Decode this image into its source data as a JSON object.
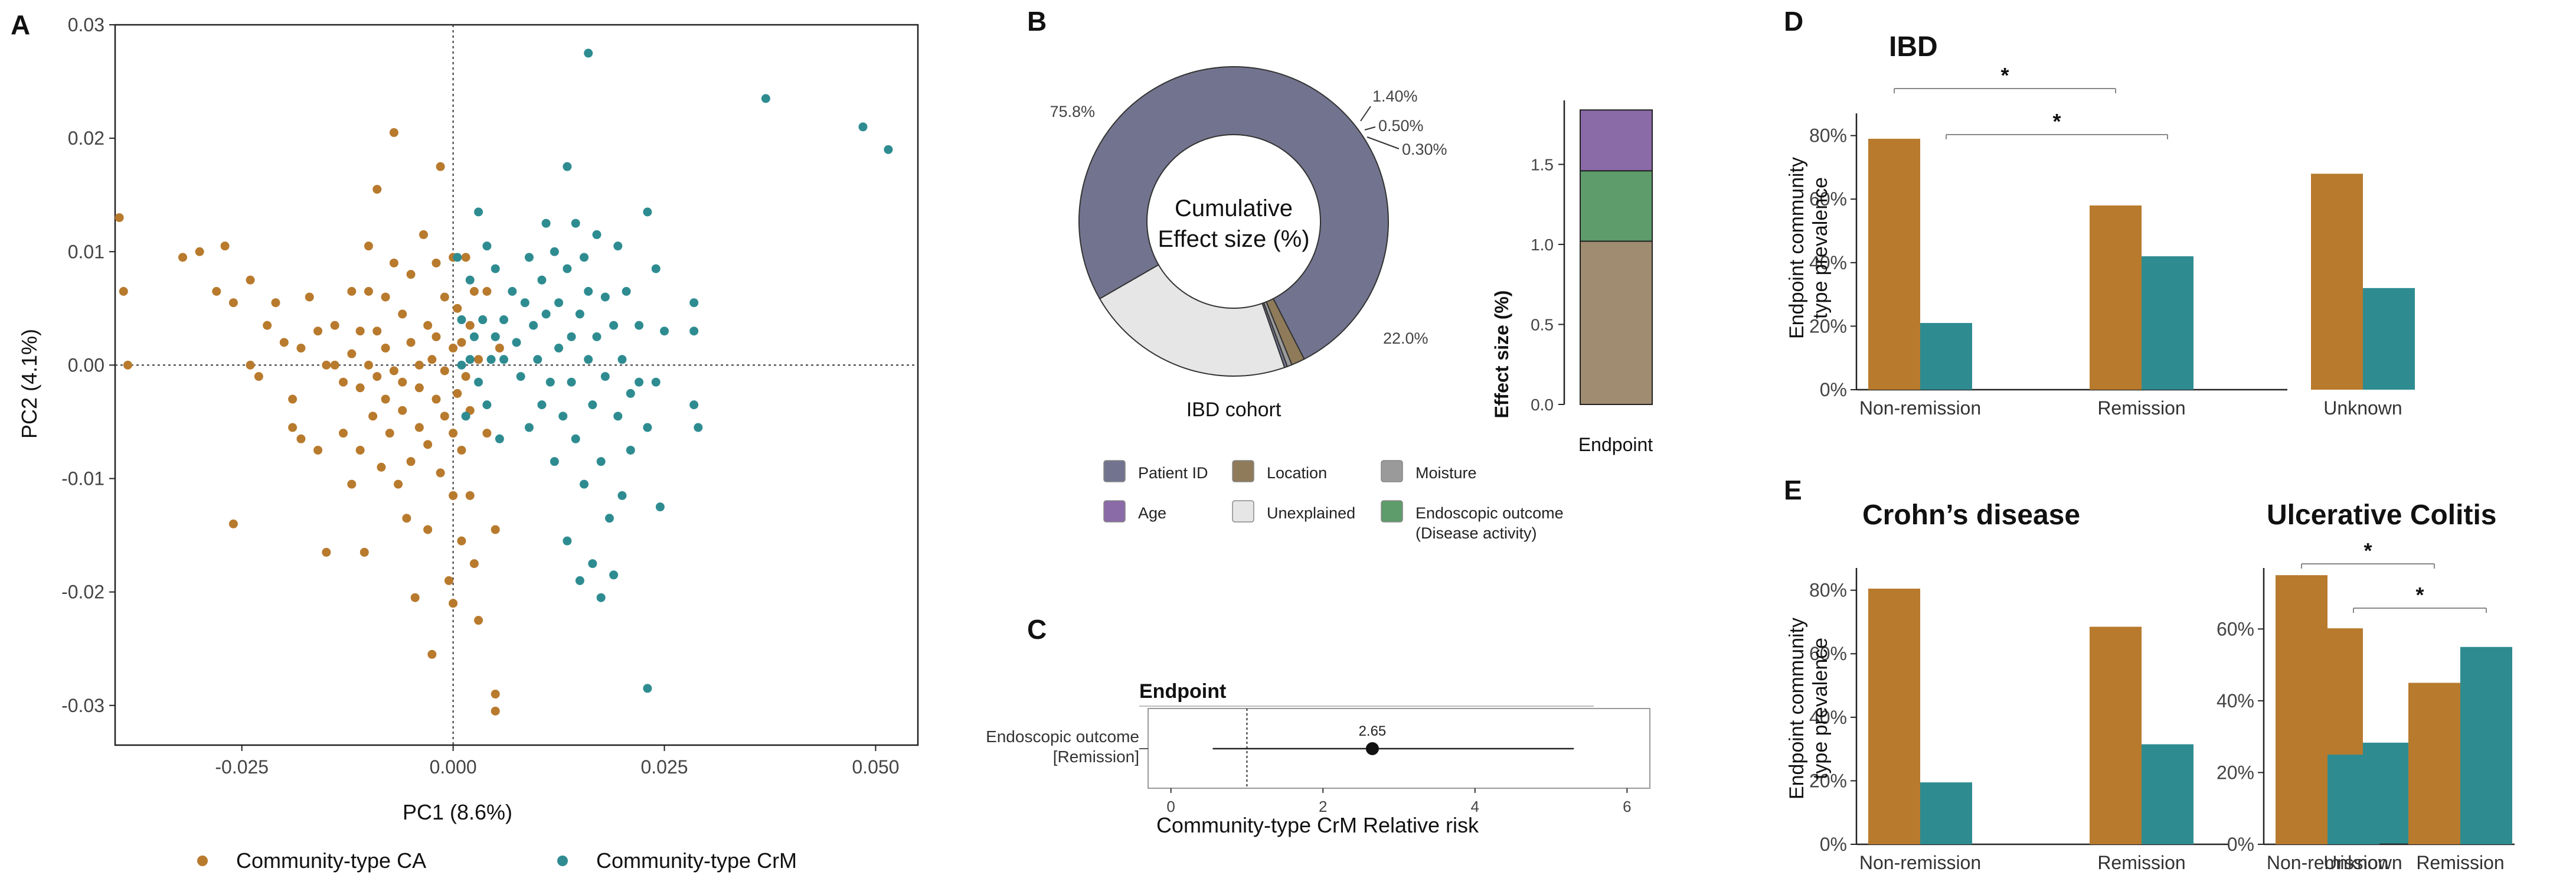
{
  "colors": {
    "ca": "#b87a2d",
    "crm": "#2e8c91",
    "patient_id": "#72748f",
    "location": "#8f7b5a",
    "moisture": "#9a9a9a",
    "age": "#8b6aa8",
    "unexplained": "#e6e6e6",
    "endo": "#5e9c6b",
    "effect_stack_base": "#a08c70"
  },
  "panel_letters": [
    "A",
    "B",
    "C",
    "D",
    "E"
  ],
  "panelA": {
    "chart_data": {
      "type": "scatter",
      "xlabel": "PC1 (8.6%)",
      "ylabel": "PC2 (4.1%)",
      "xlim": [
        -0.04,
        0.055
      ],
      "ylim": [
        -0.0335,
        0.03
      ],
      "x_ticks": [
        -0.025,
        0.0,
        0.025,
        0.05
      ],
      "x_tick_labels": [
        "-0.025",
        "0.000",
        "0.025",
        "0.050"
      ],
      "y_ticks": [
        -0.03,
        -0.02,
        -0.01,
        0.0,
        0.01,
        0.02,
        0.03
      ],
      "y_tick_labels": [
        "-0.03",
        "-0.02",
        "-0.01",
        "0.00",
        "0.01",
        "0.02",
        "0.03"
      ],
      "legend": [
        "Community-type CA",
        "Community-type CrM"
      ],
      "series": [
        {
          "name": "Community-type CA",
          "points": [
            [
              -0.0395,
              0.013
            ],
            [
              -0.039,
              0.0065
            ],
            [
              -0.0385,
              0.0
            ],
            [
              -0.032,
              0.0095
            ],
            [
              -0.03,
              0.01
            ],
            [
              -0.028,
              0.0065
            ],
            [
              -0.027,
              0.0105
            ],
            [
              -0.026,
              0.0055
            ],
            [
              -0.026,
              -0.014
            ],
            [
              -0.024,
              0.0075
            ],
            [
              -0.024,
              0.0
            ],
            [
              -0.023,
              -0.001
            ],
            [
              -0.022,
              0.0035
            ],
            [
              -0.021,
              0.0055
            ],
            [
              -0.02,
              0.002
            ],
            [
              -0.019,
              -0.003
            ],
            [
              -0.019,
              -0.0055
            ],
            [
              -0.018,
              0.0015
            ],
            [
              -0.018,
              -0.0065
            ],
            [
              -0.017,
              0.006
            ],
            [
              -0.016,
              0.003
            ],
            [
              -0.016,
              -0.0075
            ],
            [
              -0.015,
              0.0
            ],
            [
              -0.015,
              -0.0165
            ],
            [
              -0.014,
              0.0035
            ],
            [
              -0.014,
              0.0
            ],
            [
              -0.013,
              -0.0015
            ],
            [
              -0.013,
              -0.006
            ],
            [
              -0.012,
              0.0065
            ],
            [
              -0.012,
              0.001
            ],
            [
              -0.012,
              -0.0105
            ],
            [
              -0.011,
              0.003
            ],
            [
              -0.011,
              -0.002
            ],
            [
              -0.011,
              -0.0075
            ],
            [
              -0.0105,
              -0.0165
            ],
            [
              -0.01,
              0.0105
            ],
            [
              -0.01,
              0.0065
            ],
            [
              -0.01,
              0.0
            ],
            [
              -0.0095,
              -0.0045
            ],
            [
              -0.009,
              0.0155
            ],
            [
              -0.009,
              0.003
            ],
            [
              -0.009,
              -0.001
            ],
            [
              -0.0085,
              -0.009
            ],
            [
              -0.008,
              0.006
            ],
            [
              -0.008,
              0.0015
            ],
            [
              -0.008,
              -0.003
            ],
            [
              -0.0075,
              -0.006
            ],
            [
              -0.007,
              0.0205
            ],
            [
              -0.007,
              0.009
            ],
            [
              -0.007,
              -0.0005
            ],
            [
              -0.0065,
              -0.0105
            ],
            [
              -0.006,
              0.0045
            ],
            [
              -0.006,
              -0.0015
            ],
            [
              -0.006,
              -0.004
            ],
            [
              -0.0055,
              -0.0135
            ],
            [
              -0.005,
              0.008
            ],
            [
              -0.005,
              0.002
            ],
            [
              -0.005,
              -0.0085
            ],
            [
              -0.0045,
              -0.0205
            ],
            [
              -0.004,
              0.0
            ],
            [
              -0.004,
              -0.002
            ],
            [
              -0.004,
              -0.0055
            ],
            [
              -0.0035,
              0.0115
            ],
            [
              -0.003,
              0.0035
            ],
            [
              -0.003,
              -0.007
            ],
            [
              -0.003,
              -0.0145
            ],
            [
              -0.0025,
              0.0005
            ],
            [
              -0.0025,
              -0.0255
            ],
            [
              -0.002,
              0.009
            ],
            [
              -0.002,
              0.0025
            ],
            [
              -0.002,
              -0.003
            ],
            [
              -0.0015,
              0.0175
            ],
            [
              -0.0015,
              -0.0095
            ],
            [
              -0.001,
              0.006
            ],
            [
              -0.001,
              -0.0005
            ],
            [
              -0.001,
              -0.0045
            ],
            [
              -0.0005,
              -0.019
            ],
            [
              0.0,
              0.0095
            ],
            [
              0.0,
              0.0015
            ],
            [
              0.0,
              -0.006
            ],
            [
              0.0,
              -0.0115
            ],
            [
              0.0,
              -0.021
            ],
            [
              0.0005,
              0.005
            ],
            [
              0.0005,
              -0.0025
            ],
            [
              0.001,
              0.002
            ],
            [
              0.001,
              -0.0075
            ],
            [
              0.001,
              -0.0155
            ],
            [
              0.0015,
              0.0095
            ],
            [
              0.0015,
              -0.001
            ],
            [
              0.002,
              0.0035
            ],
            [
              0.002,
              -0.004
            ],
            [
              0.002,
              -0.0115
            ],
            [
              0.0025,
              0.0065
            ],
            [
              0.0025,
              -0.0175
            ],
            [
              0.003,
              0.0005
            ],
            [
              0.003,
              -0.0225
            ],
            [
              0.004,
              0.0065
            ],
            [
              0.004,
              -0.006
            ],
            [
              0.005,
              -0.0145
            ],
            [
              0.005,
              -0.029
            ],
            [
              0.005,
              -0.0305
            ],
            [
              0.0055,
              0.0015
            ]
          ]
        },
        {
          "name": "Community-type CrM",
          "points": [
            [
              0.0005,
              0.0095
            ],
            [
              0.001,
              0.004
            ],
            [
              0.001,
              0.0
            ],
            [
              0.0015,
              -0.0045
            ],
            [
              0.002,
              0.0075
            ],
            [
              0.002,
              0.0005
            ],
            [
              0.0025,
              0.0025
            ],
            [
              0.003,
              0.0135
            ],
            [
              0.003,
              -0.0015
            ],
            [
              0.0035,
              0.004
            ],
            [
              0.004,
              0.0105
            ],
            [
              0.004,
              -0.0035
            ],
            [
              0.0045,
              0.0005
            ],
            [
              0.005,
              0.0025
            ],
            [
              0.005,
              0.0085
            ],
            [
              0.0055,
              -0.0065
            ],
            [
              0.006,
              0.004
            ],
            [
              0.006,
              0.0005
            ],
            [
              0.007,
              0.0065
            ],
            [
              0.0075,
              0.002
            ],
            [
              0.008,
              -0.001
            ],
            [
              0.0085,
              0.0055
            ],
            [
              0.009,
              0.0095
            ],
            [
              0.009,
              -0.0055
            ],
            [
              0.0095,
              0.0035
            ],
            [
              0.01,
              0.0005
            ],
            [
              0.0105,
              0.0075
            ],
            [
              0.0105,
              -0.0035
            ],
            [
              0.011,
              0.0125
            ],
            [
              0.011,
              0.0045
            ],
            [
              0.0115,
              -0.0015
            ],
            [
              0.012,
              0.01
            ],
            [
              0.012,
              -0.0085
            ],
            [
              0.0125,
              0.0055
            ],
            [
              0.0125,
              0.0015
            ],
            [
              0.013,
              -0.0045
            ],
            [
              0.0135,
              0.0175
            ],
            [
              0.0135,
              0.0085
            ],
            [
              0.0135,
              -0.0155
            ],
            [
              0.014,
              0.0025
            ],
            [
              0.014,
              -0.0015
            ],
            [
              0.0145,
              0.0125
            ],
            [
              0.0145,
              -0.0065
            ],
            [
              0.015,
              0.0045
            ],
            [
              0.015,
              -0.019
            ],
            [
              0.0155,
              0.0095
            ],
            [
              0.0155,
              -0.0105
            ],
            [
              0.016,
              0.0005
            ],
            [
              0.016,
              0.0275
            ],
            [
              0.016,
              0.0065
            ],
            [
              0.0165,
              -0.0035
            ],
            [
              0.0165,
              -0.0175
            ],
            [
              0.017,
              0.0115
            ],
            [
              0.017,
              0.0025
            ],
            [
              0.0175,
              -0.0085
            ],
            [
              0.0175,
              -0.0205
            ],
            [
              0.018,
              0.006
            ],
            [
              0.018,
              -0.001
            ],
            [
              0.0185,
              -0.0135
            ],
            [
              0.019,
              0.0035
            ],
            [
              0.019,
              -0.0185
            ],
            [
              0.0195,
              0.0105
            ],
            [
              0.0195,
              -0.0045
            ],
            [
              0.02,
              0.0005
            ],
            [
              0.02,
              -0.0115
            ],
            [
              0.0205,
              0.0065
            ],
            [
              0.021,
              -0.0025
            ],
            [
              0.021,
              -0.0075
            ],
            [
              0.022,
              0.0035
            ],
            [
              0.022,
              -0.0015
            ],
            [
              0.023,
              0.0135
            ],
            [
              0.023,
              -0.0055
            ],
            [
              0.023,
              -0.0285
            ],
            [
              0.024,
              0.0085
            ],
            [
              0.024,
              -0.0015
            ],
            [
              0.0245,
              -0.0125
            ],
            [
              0.025,
              0.003
            ],
            [
              0.0285,
              -0.0035
            ],
            [
              0.0285,
              0.0055
            ],
            [
              0.0285,
              0.003
            ],
            [
              0.029,
              -0.0055
            ],
            [
              0.037,
              0.0235
            ],
            [
              0.0485,
              0.021
            ],
            [
              0.0515,
              0.019
            ]
          ]
        }
      ]
    }
  },
  "panelB": {
    "donut": {
      "chart_data": {
        "type": "pie",
        "center_label": [
          "Cumulative",
          "Effect size (%)"
        ],
        "caption": "IBD cohort",
        "slices": [
          {
            "name": "Patient ID",
            "value": 75.8,
            "label": "75.8%"
          },
          {
            "name": "Location",
            "value": 1.4,
            "label": "1.40%"
          },
          {
            "name": "Moisture",
            "value": 0.5,
            "label": "0.50%"
          },
          {
            "name": "Endoscopic outcome",
            "value": 0.3,
            "label": "0.30%"
          },
          {
            "name": "Unexplained",
            "value": 22.0,
            "label": "22.0%"
          }
        ]
      }
    },
    "stack": {
      "chart_data": {
        "type": "bar",
        "categories": [
          "Endpoint"
        ],
        "ylabel": "Effect size (%)",
        "xlabel": "Endpoint",
        "ylim": [
          0,
          1.9
        ],
        "y_ticks": [
          0.0,
          0.5,
          1.0,
          1.5
        ],
        "y_tick_labels": [
          "0.0",
          "0.5",
          "1.0",
          "1.5"
        ],
        "segments": [
          {
            "name": "Location",
            "value": 1.02
          },
          {
            "name": "Endoscopic outcome (Disease activity)",
            "value": 0.44
          },
          {
            "name": "Age",
            "value": 0.38
          }
        ]
      }
    },
    "legend": [
      {
        "label": "Patient ID",
        "key": "patient_id"
      },
      {
        "label": "Location",
        "key": "location"
      },
      {
        "label": "Moisture",
        "key": "moisture"
      },
      {
        "label": "Age",
        "key": "age"
      },
      {
        "label": "Unexplained",
        "key": "unexplained"
      },
      {
        "label": "Endoscopic outcome",
        "label2": "(Disease activity)",
        "key": "endo"
      }
    ]
  },
  "panelC": {
    "chart_data": {
      "type": "scatter",
      "header": "Endpoint",
      "row_label": [
        "Endoscopic outcome",
        "[Remission]"
      ],
      "xlabel": "Community-type CrM Relative risk",
      "xlim": [
        -0.3,
        6.3
      ],
      "x_ticks": [
        0,
        2,
        4,
        6
      ],
      "x_tick_labels": [
        "0",
        "2",
        "4",
        "6"
      ],
      "reference": 1,
      "estimate": 2.65,
      "estimate_label": "2.65",
      "ci": [
        0.55,
        5.3
      ]
    }
  },
  "panelD": {
    "title": "IBD",
    "chart_data": {
      "type": "bar",
      "ylabel": [
        "Endpoint community",
        "type prevalence"
      ],
      "categories": [
        "Non-remission",
        "Remission",
        "Unknown"
      ],
      "series": [
        {
          "name": "Community-type CA",
          "values": [
            0.79,
            0.58,
            0.68
          ]
        },
        {
          "name": "Community-type CrM",
          "values": [
            0.21,
            0.42,
            0.32
          ]
        }
      ],
      "ylim": [
        0,
        0.87
      ],
      "y_ticks": [
        0,
        0.2,
        0.4,
        0.6,
        0.8
      ],
      "y_tick_labels": [
        "0%",
        "20%",
        "40%",
        "60%",
        "80%"
      ],
      "sig": [
        "*",
        "*"
      ]
    }
  },
  "panelE_cd": {
    "title": "Crohn’s disease",
    "chart_data": {
      "type": "bar",
      "ylabel": [
        "Endpoint community",
        "type prevalence"
      ],
      "categories": [
        "Non-remission",
        "Remission",
        "Unknown"
      ],
      "series": [
        {
          "name": "Community-type CA",
          "values": [
            0.805,
            0.685,
            0.68
          ]
        },
        {
          "name": "Community-type CrM",
          "values": [
            0.195,
            0.315,
            0.32
          ]
        }
      ],
      "ylim": [
        0,
        0.87
      ],
      "y_ticks": [
        0,
        0.2,
        0.4,
        0.6,
        0.8
      ],
      "y_tick_labels": [
        "0%",
        "20%",
        "40%",
        "60%",
        "80%"
      ]
    }
  },
  "panelE_uc": {
    "title": "Ulcerative Colitis",
    "chart_data": {
      "type": "bar",
      "categories": [
        "Non-remission",
        "Remission"
      ],
      "series": [
        {
          "name": "Community-type CA",
          "values": [
            0.75,
            0.45
          ]
        },
        {
          "name": "Community-type CrM",
          "values": [
            0.25,
            0.55
          ]
        }
      ],
      "ylim": [
        0,
        0.77
      ],
      "y_ticks": [
        0,
        0.2,
        0.4,
        0.6
      ],
      "y_tick_labels": [
        "0%",
        "20%",
        "40%",
        "60%"
      ],
      "sig": [
        "*",
        "*"
      ]
    }
  }
}
